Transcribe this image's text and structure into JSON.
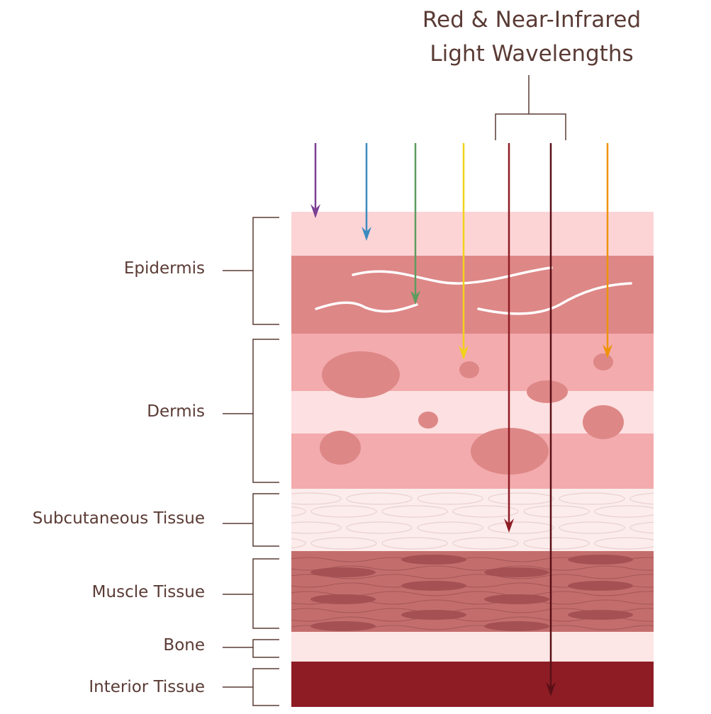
{
  "title": {
    "line1": "Red & Near-Infrared",
    "line2": "Light Wavelengths"
  },
  "layers": [
    {
      "label": "Epidermis"
    },
    {
      "label": "Dermis"
    },
    {
      "label": "Subcutaneous Tissue"
    },
    {
      "label": "Muscle Tissue"
    },
    {
      "label": "Bone"
    },
    {
      "label": "Interior Tissue"
    }
  ],
  "arrows": [
    {
      "color": "#7b3f93"
    },
    {
      "color": "#3b8bbf"
    },
    {
      "color": "#5d9c5f"
    },
    {
      "color": "#f2d21a"
    },
    {
      "color": "#8e1c25"
    },
    {
      "color": "#5a0f16"
    },
    {
      "color": "#ef930a"
    }
  ],
  "colors": {
    "text": "#5a3b35",
    "epidermis_top": "#fcd4d6",
    "epidermis_lower": "#de8787",
    "dermis": "#f3abad",
    "dermis_light": "#fde0e1",
    "subcutaneous": "#fcecec",
    "muscle": "#c36e6d",
    "bone": "#fde6e6",
    "interior": "#8e1c25"
  }
}
